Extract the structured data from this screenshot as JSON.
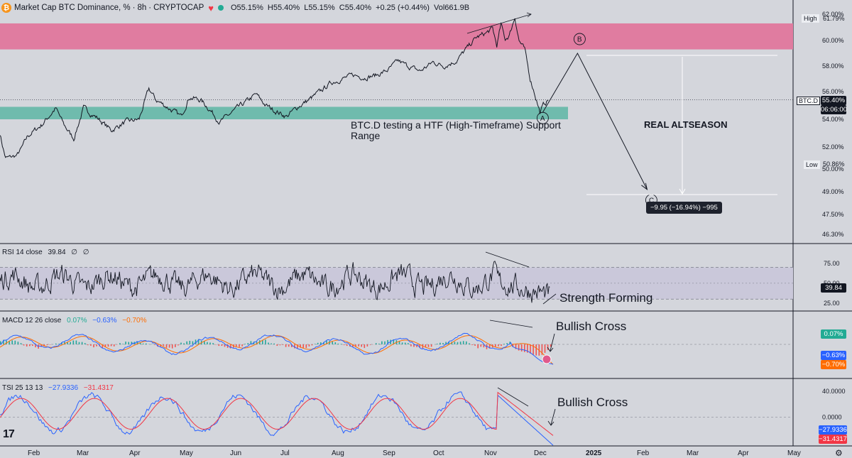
{
  "header": {
    "symbol": "Market Cap BTC Dominance, %",
    "interval": "8h",
    "exchange": "CRYPTOCAP",
    "logo_glyph": "₿",
    "ohlc": [
      "O55.15%",
      "H55.40%",
      "L55.15%",
      "C55.40%",
      "+0.25 (+0.44%)",
      "Vol661.9B"
    ],
    "status_color": "#22ab94"
  },
  "price_axis": {
    "high_label": "High",
    "high_value": "61.79%",
    "low_label": "Low",
    "low_value": "50.86%",
    "current_symbol": "BTC.D",
    "current_value": "55.40%",
    "countdown": "06:06:00"
  },
  "annotations": {
    "support_text_1": "BTC.D testing a HTF (High-Timeframe) Support",
    "support_text_2": "Range",
    "real_altseason": "REAL ALTSEASON",
    "wave_a": "A",
    "wave_b": "B",
    "wave_c": "C",
    "measure_label": "−9.95 (−16.94%) −995",
    "rsi_note": "Strength Forming",
    "macd_note": "Bullish Cross",
    "tsi_note": "Bullish Cross",
    "logo_text": "17"
  },
  "rsi_legend": {
    "name": "RSI 14 close",
    "value": "39.84",
    "extra1": "∅",
    "extra2": "∅",
    "axis_value": "39.84"
  },
  "macd_legend": {
    "name": "MACD 12 26 close",
    "v1": "0.07%",
    "v2": "−0.63%",
    "v3": "−0.70%"
  },
  "tsi_legend": {
    "name": "TSI 25 13 13",
    "v1": "−27.9336",
    "v2": "−31.4317"
  },
  "colors": {
    "resistance_zone": "#e07ca0",
    "support_zone": "#6fbbad",
    "rsi_band": "#cac8da",
    "macd_blue": "#2962ff",
    "macd_orange": "#ff6d00",
    "tsi_blue": "#2962ff",
    "tsi_red": "#f23645",
    "hist_green": "#26a69a",
    "hist_red": "#ef5350",
    "macd_tag_green": "#22ab94",
    "macd_tag_blue": "#2962ff",
    "macd_tag_orange": "#ff6d00"
  },
  "chart_data": [
    {
      "type": "line",
      "title": "",
      "series_shape": [
        [
          0,
          53.0
        ],
        [
          0.4,
          51.0
        ],
        [
          1.2,
          51.2
        ],
        [
          2.0,
          52.8
        ],
        [
          3.0,
          53.6
        ],
        [
          4.0,
          54.8
        ],
        [
          4.6,
          53.6
        ],
        [
          5.3,
          52.6
        ],
        [
          6.0,
          54.8
        ],
        [
          7.0,
          54.1
        ],
        [
          8.0,
          53.2
        ],
        [
          9.0,
          53.8
        ],
        [
          10.0,
          54.0
        ],
        [
          10.7,
          56.2
        ],
        [
          11.2,
          55.4
        ],
        [
          12.0,
          54.9
        ],
        [
          13.0,
          54.2
        ],
        [
          13.6,
          55.6
        ],
        [
          14.4,
          55.4
        ],
        [
          15.0,
          54.8
        ],
        [
          15.8,
          53.8
        ],
        [
          16.8,
          54.6
        ],
        [
          17.6,
          55.2
        ],
        [
          18.4,
          55.8
        ],
        [
          19.1,
          55.0
        ],
        [
          19.8,
          54.6
        ],
        [
          20.6,
          54.2
        ],
        [
          21.4,
          54.9
        ],
        [
          22.2,
          55.4
        ],
        [
          23.0,
          56.0
        ],
        [
          23.8,
          56.7
        ],
        [
          24.6,
          57.0
        ],
        [
          25.4,
          57.3
        ],
        [
          26.2,
          57.1
        ],
        [
          27.1,
          57.3
        ],
        [
          27.9,
          57.7
        ],
        [
          28.6,
          58.4
        ],
        [
          29.3,
          58.0
        ],
        [
          30.2,
          57.6
        ],
        [
          31.1,
          58.3
        ],
        [
          31.9,
          58.0
        ],
        [
          32.8,
          58.4
        ],
        [
          33.4,
          59.2
        ],
        [
          34.2,
          60.2
        ],
        [
          35.0,
          60.6
        ],
        [
          35.4,
          60.9
        ],
        [
          35.7,
          59.6
        ],
        [
          36.0,
          61.2
        ],
        [
          36.3,
          60.1
        ],
        [
          36.6,
          60.4
        ],
        [
          37.0,
          61.79
        ],
        [
          37.3,
          60.0
        ],
        [
          37.7,
          59.3
        ],
        [
          38.1,
          57.0
        ],
        [
          38.5,
          55.6
        ],
        [
          38.8,
          54.5
        ],
        [
          39.1,
          55.1
        ],
        [
          39.4,
          55.4
        ]
      ],
      "x_tick_labels": [
        "Feb",
        "Mar",
        "Apr",
        "May",
        "Jun",
        "Jul",
        "Aug",
        "Sep",
        "Oct",
        "Nov",
        "Dec",
        "2025",
        "Feb",
        "Mar",
        "Apr",
        "May"
      ],
      "y_tick_labels": [
        "62.00%",
        "60.00%",
        "58.00%",
        "56.00%",
        "54.00%",
        "52.00%",
        "50.00%",
        "49.00%",
        "47.50%",
        "46.30%"
      ],
      "ylim": [
        45.8,
        62.4
      ],
      "zones": {
        "resistance": [
          59.3,
          61.3
        ],
        "support": [
          54.0,
          54.9
        ]
      },
      "projection": {
        "A": [
          39.0,
          54.5
        ],
        "B": [
          41.5,
          59.0
        ],
        "C": [
          46.5,
          49.1
        ]
      }
    },
    {
      "type": "line",
      "name": "RSI 14 close",
      "y_tick_labels": [
        "75.00",
        "50.00",
        "25.00"
      ],
      "ylim": [
        15,
        100
      ],
      "band": [
        30,
        70
      ]
    },
    {
      "type": "line",
      "name": "MACD 12 26 close",
      "series": [
        {
          "name": "MACD"
        },
        {
          "name": "Signal"
        },
        {
          "name": "Histogram"
        }
      ]
    },
    {
      "type": "line",
      "name": "TSI 25 13 13",
      "y_tick_labels": [
        "40.0000",
        "0.0000"
      ],
      "ylim": [
        -45,
        60
      ]
    }
  ]
}
